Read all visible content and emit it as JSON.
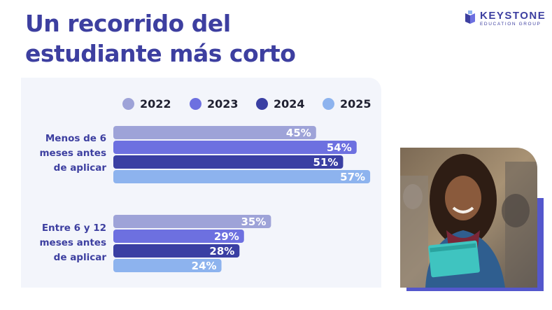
{
  "title_lines": [
    "Un recorrido del",
    "estudiante más corto"
  ],
  "brand": {
    "name": "KEYSTONE",
    "subtitle": "EDUCATION GROUP",
    "logo_icon": "book-icon"
  },
  "colors": {
    "title": "#3d3fa0",
    "panel": "#f3f5fb",
    "series": [
      "#9ea3d8",
      "#6d70e0",
      "#3a3fa3",
      "#8db3ee"
    ]
  },
  "chart_data": {
    "type": "bar",
    "orientation": "horizontal",
    "title": "",
    "xlabel": "",
    "ylabel": "",
    "xlim": [
      0,
      64
    ],
    "value_suffix": "%",
    "legend_position": "top",
    "grid": false,
    "categories": [
      [
        "Menos de 6",
        "meses antes",
        "de aplicar"
      ],
      [
        "Entre 6 y 12",
        "meses antes",
        "de aplicar"
      ]
    ],
    "series": [
      {
        "name": "2022",
        "values": [
          45,
          35
        ]
      },
      {
        "name": "2023",
        "values": [
          54,
          29
        ]
      },
      {
        "name": "2024",
        "values": [
          51,
          28
        ]
      },
      {
        "name": "2025",
        "values": [
          57,
          24
        ]
      }
    ]
  }
}
